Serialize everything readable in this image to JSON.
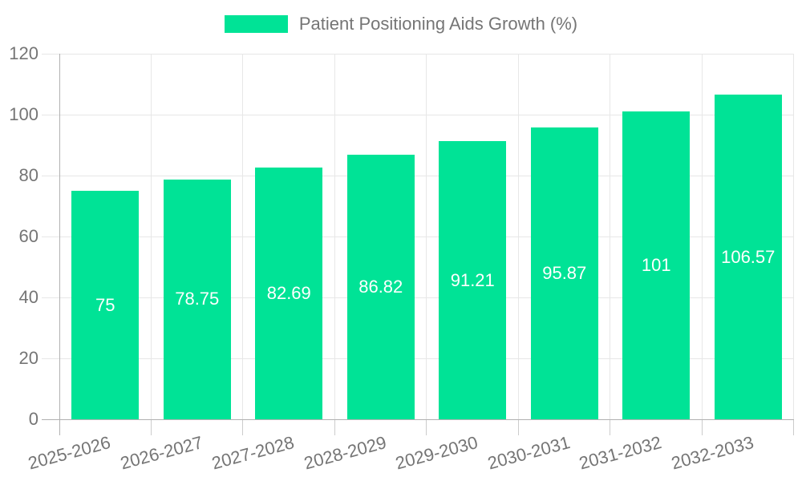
{
  "legend": {
    "label": "Patient Positioning Aids Growth (%)"
  },
  "colors": {
    "bar": "#00E396",
    "grid": "#e7e7e7",
    "axis": "#b1b1b1",
    "tick": "#cccccc",
    "label_text": "#757575",
    "value_text": "#ffffff",
    "background": "#ffffff"
  },
  "chart_data": {
    "type": "bar",
    "title": "Patient Positioning Aids Growth (%)",
    "categories": [
      "2025-2026",
      "2026-2027",
      "2027-2028",
      "2028-2029",
      "2029-2030",
      "2030-2031",
      "2031-2032",
      "2032-2033"
    ],
    "series": [
      {
        "name": "Patient Positioning Aids Growth (%)",
        "values": [
          75,
          78.75,
          82.69,
          86.82,
          91.21,
          95.87,
          101,
          106.57
        ]
      }
    ],
    "value_labels": [
      "75",
      "78.75",
      "82.69",
      "86.82",
      "91.21",
      "95.87",
      "101",
      "106.57"
    ],
    "xlabel": "",
    "ylabel": "",
    "ylim": [
      0,
      120
    ],
    "yticks": [
      0,
      20,
      40,
      60,
      80,
      100,
      120
    ],
    "ytick_labels": [
      "0",
      "20",
      "40",
      "60",
      "80",
      "100",
      "120"
    ],
    "grid": true,
    "legend_position": "top",
    "x_label_rotation_deg": -15
  }
}
